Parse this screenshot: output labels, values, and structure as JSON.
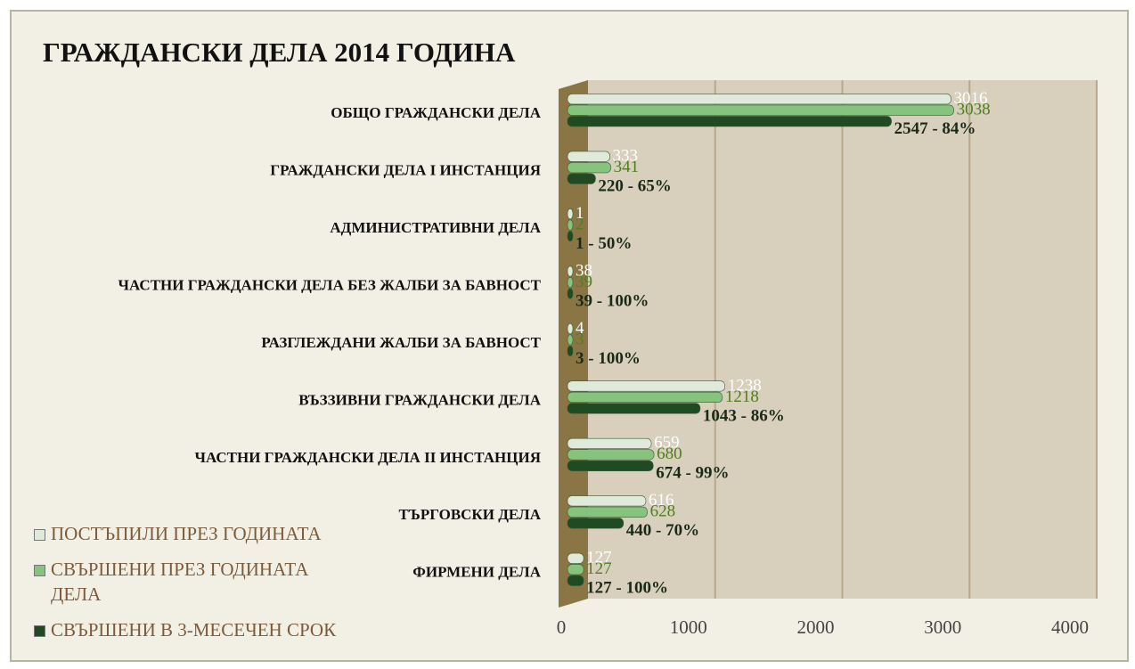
{
  "chart_data": {
    "type": "bar",
    "orientation": "horizontal",
    "title": "ГРАЖДАНСКИ ДЕЛА 2014 ГОДИНА",
    "categories": [
      "ОБЩО ГРАЖДАНСКИ ДЕЛА",
      "ГРАЖДАНСКИ ДЕЛА I ИНСТАНЦИЯ",
      "АДМИНИСТРАТИВНИ ДЕЛА",
      "ЧАСТНИ ГРАЖДАНСКИ ДЕЛА БЕЗ ЖАЛБИ ЗА БАВНОСТ",
      "РАЗГЛЕЖДАНИ ЖАЛБИ ЗА БАВНОСТ",
      "ВЪЗЗИВНИ ГРАЖДАНСКИ ДЕЛА",
      "ЧАСТНИ ГРАЖДАНСКИ ДЕЛА II ИНСТАНЦИЯ",
      "ТЪРГОВСКИ ДЕЛА",
      "ФИРМЕНИ ДЕЛА"
    ],
    "series": [
      {
        "name": "ПОСТЪПИЛИ ПРЕЗ ГОДИНАТА",
        "color": "#dfeadb",
        "label_color": "#ffffff",
        "values": [
          3016,
          333,
          1,
          38,
          4,
          1238,
          659,
          616,
          127
        ]
      },
      {
        "name": "СВЪРШЕНИ ПРЕЗ ГОДИНАТА ДЕЛА",
        "color": "#86c47e",
        "label_color": "#4d7f1c",
        "values": [
          3038,
          341,
          2,
          39,
          3,
          1218,
          680,
          628,
          127
        ]
      },
      {
        "name": "СВЪРШЕНИ В 3-МЕСЕЧЕН СРОК",
        "color": "#1f4a22",
        "label_color": "#1b2a18",
        "values": [
          2547,
          220,
          1,
          39,
          3,
          1043,
          674,
          440,
          127
        ],
        "value_labels": [
          "2547 - 84%",
          "220 - 65%",
          "1 - 50%",
          "39 - 100%",
          "3 - 100%",
          "1043 - 86%",
          "674 - 99%",
          "440 - 70%",
          "127 - 100%"
        ]
      }
    ],
    "xlim": [
      0,
      4000
    ],
    "xticks": [
      0,
      1000,
      2000,
      3000,
      4000
    ],
    "grid": true,
    "legend": "bottom-left"
  }
}
